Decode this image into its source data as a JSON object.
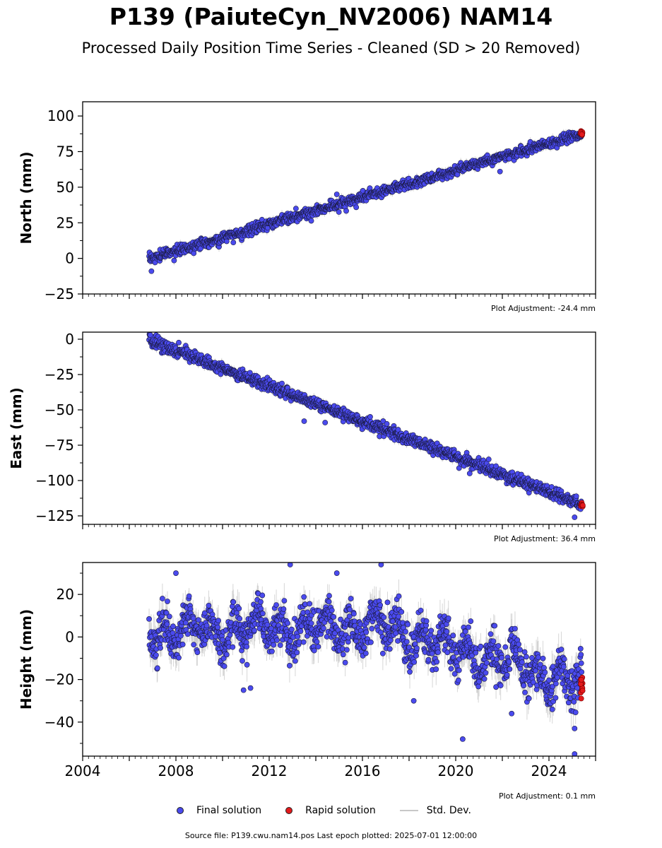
{
  "title": "P139 (PaiuteCyn_NV2006) NAM14",
  "subtitle": "Processed Daily Position Time Series - Cleaned (SD > 20 Removed)",
  "legend": {
    "final_label": "Final solution",
    "rapid_label": "Rapid solution",
    "std_label": "Std. Dev."
  },
  "source_text": "Source file: P139.cwu.nam14.pos  Last epoch plotted: 2025-07-01 12:00:00",
  "colors": {
    "final": "#4a4aee",
    "rapid": "#e31a1c",
    "std": "#c8c8c8",
    "edge": "#1a1a40"
  },
  "chart_data": [
    {
      "type": "scatter",
      "ylabel": "North (mm)",
      "adjustment": "Plot Adjustment: -24.4 mm",
      "xlim": [
        2004,
        2026
      ],
      "ylim": [
        -25,
        110
      ],
      "yticks": [
        -25,
        0,
        25,
        50,
        75,
        100
      ],
      "ytick_labels": [
        "−25",
        "0",
        "25",
        "50",
        "75",
        "100"
      ],
      "show_xtick_labels": false,
      "series": [
        {
          "kind": "final",
          "trend": [
            [
              2006.85,
              -0.5
            ],
            [
              2025.4,
              87.5
            ]
          ],
          "scatter_sd": 1.8,
          "std_dev": 2.5,
          "outliers": [
            [
              2006.95,
              -9
            ],
            [
              2014.9,
              45
            ],
            [
              2021.9,
              61
            ],
            [
              2022.3,
              70
            ]
          ]
        },
        {
          "kind": "rapid",
          "x_range": [
            2025.35,
            2025.45
          ],
          "y_center": 88,
          "y_spread": 1.5
        }
      ]
    },
    {
      "type": "scatter",
      "ylabel": "East (mm)",
      "adjustment": "Plot Adjustment: 36.4 mm",
      "xlim": [
        2004,
        2026
      ],
      "ylim": [
        -131,
        5
      ],
      "yticks": [
        -125,
        -100,
        -75,
        -50,
        -25,
        0
      ],
      "ytick_labels": [
        "−125",
        "−100",
        "−75",
        "−50",
        "−25",
        "0"
      ],
      "show_xtick_labels": false,
      "series": [
        {
          "kind": "final",
          "trend": [
            [
              2006.85,
              -1
            ],
            [
              2025.4,
              -117
            ]
          ],
          "scatter_sd": 2.0,
          "std_dev": 2.5,
          "outliers": [
            [
              2006.9,
              3
            ],
            [
              2013.5,
              -58
            ],
            [
              2014.4,
              -59
            ],
            [
              2020.6,
              -95
            ],
            [
              2025.1,
              -126
            ]
          ]
        },
        {
          "kind": "rapid",
          "x_range": [
            2025.35,
            2025.45
          ],
          "y_center": -117,
          "y_spread": 1.5
        }
      ]
    },
    {
      "type": "scatter",
      "ylabel": "Height (mm)",
      "adjustment": "Plot Adjustment: 0.1 mm",
      "xlim": [
        2004,
        2026
      ],
      "ylim": [
        -56,
        35
      ],
      "yticks": [
        -40,
        -20,
        0,
        20
      ],
      "ytick_labels": [
        "−40",
        "−20",
        "0",
        "20"
      ],
      "show_xtick_labels": true,
      "xticks": [
        2004,
        2008,
        2012,
        2016,
        2020,
        2024
      ],
      "xtick_labels": [
        "2004",
        "2008",
        "2012",
        "2016",
        "2020",
        "2024"
      ],
      "series": [
        {
          "kind": "final",
          "trend": [
            [
              2006.85,
              3
            ],
            [
              2016.5,
              5
            ],
            [
              2025.4,
              -22
            ]
          ],
          "seasonal_amplitude": 6,
          "scatter_sd": 5,
          "std_dev": 6,
          "outliers": [
            [
              2008.0,
              30
            ],
            [
              2012.9,
              34
            ],
            [
              2016.8,
              34
            ],
            [
              2014.9,
              30
            ],
            [
              2020.3,
              -48
            ],
            [
              2025.1,
              -55
            ],
            [
              2022.4,
              -36
            ],
            [
              2018.2,
              -30
            ],
            [
              2025.1,
              -43
            ],
            [
              2011.2,
              -24
            ],
            [
              2010.9,
              -25
            ]
          ]
        },
        {
          "kind": "rapid",
          "x_range": [
            2025.35,
            2025.45
          ],
          "y_center": -24,
          "y_spread": 5
        }
      ]
    }
  ]
}
